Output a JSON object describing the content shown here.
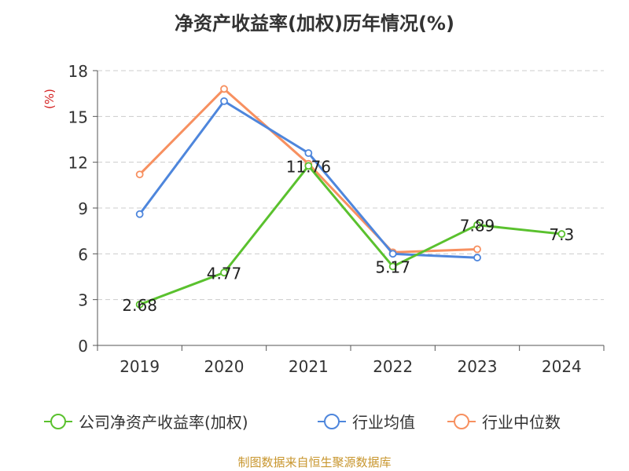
{
  "chart_data": {
    "type": "line",
    "title": "净资产收益率(加权)历年情况(%)",
    "ylabel": "(%)",
    "xlabel": "",
    "categories": [
      "2019",
      "2020",
      "2021",
      "2022",
      "2023",
      "2024"
    ],
    "ylim": [
      0,
      18
    ],
    "yticks": [
      0,
      3,
      6,
      9,
      12,
      15,
      18
    ],
    "grid": "horizontal dashed",
    "legend_position": "bottom",
    "series": [
      {
        "name": "公司净资产收益率(加权)",
        "color": "#5ac12e",
        "values": [
          2.68,
          4.77,
          11.76,
          5.17,
          7.89,
          7.3
        ],
        "labels": [
          "2.68",
          "4.77",
          "11.76",
          "5.17",
          "7.89",
          "7.3"
        ]
      },
      {
        "name": "行业均值",
        "color": "#4e86dc",
        "values": [
          8.6,
          16.0,
          12.6,
          6.0,
          5.75,
          null
        ]
      },
      {
        "name": "行业中位数",
        "color": "#f79060",
        "values": [
          11.2,
          16.8,
          11.9,
          6.1,
          6.3,
          null
        ]
      }
    ]
  },
  "footer": "制图数据来自恒生聚源数据库"
}
